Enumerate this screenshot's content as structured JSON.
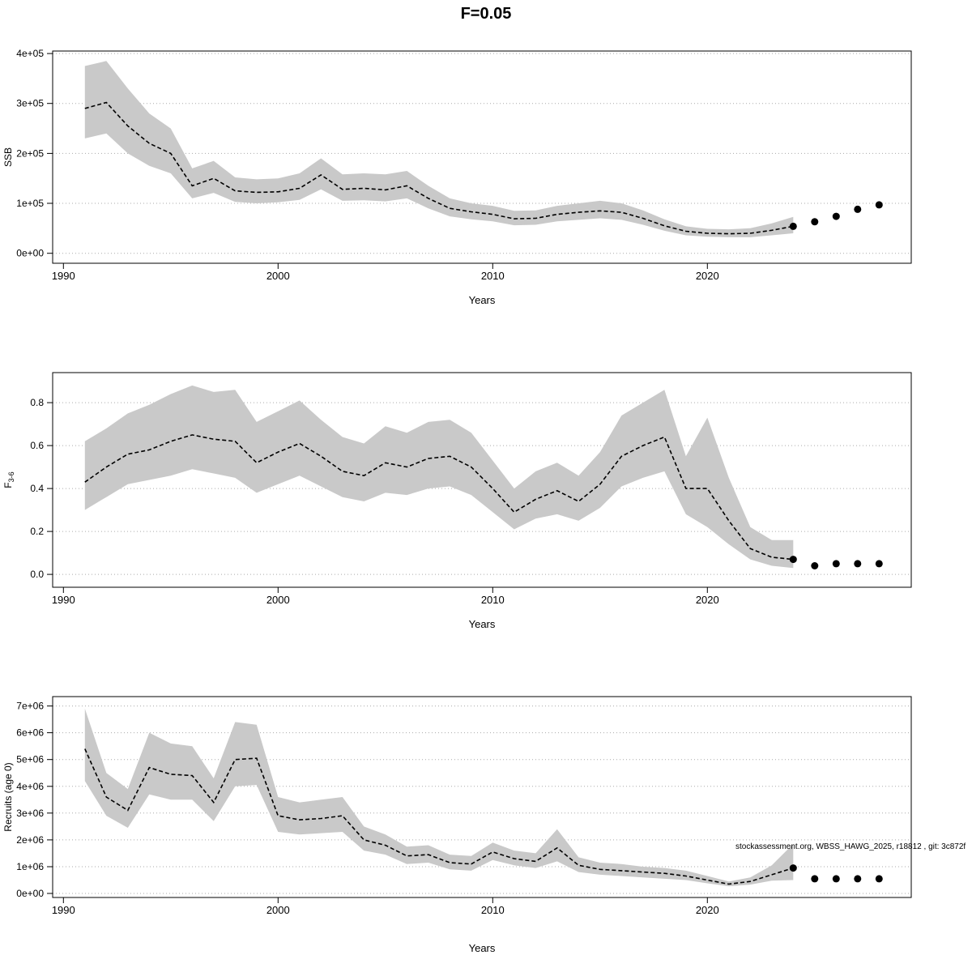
{
  "title": "F=0.05",
  "watermark": "stockassessment.org, WBSS_HAWG_2025, r18812 , git: 3c872f",
  "colors": {
    "band": "#c9c9c9",
    "line": "#000000",
    "grid": "#aaaaaa"
  },
  "chart_data": [
    {
      "id": "ssb",
      "type": "area",
      "ylabel": "SSB",
      "ylabel_sub": "",
      "xlabel": "Years",
      "xlim": [
        1989.5,
        2029.5
      ],
      "xticks": [
        1990,
        2000,
        2010,
        2020
      ],
      "ylim": [
        -20000,
        405000
      ],
      "yticks": [
        0,
        100000,
        200000,
        300000,
        400000
      ],
      "ytick_labels": [
        "0e+00",
        "1e+05",
        "2e+05",
        "3e+05",
        "4e+05"
      ],
      "years": [
        1991,
        1992,
        1993,
        1994,
        1995,
        1996,
        1997,
        1998,
        1999,
        2000,
        2001,
        2002,
        2003,
        2004,
        2005,
        2006,
        2007,
        2008,
        2009,
        2010,
        2011,
        2012,
        2013,
        2014,
        2015,
        2016,
        2017,
        2018,
        2019,
        2020,
        2021,
        2022,
        2023,
        2024
      ],
      "mean": [
        290000,
        302000,
        255000,
        220000,
        200000,
        135000,
        150000,
        125000,
        122000,
        123000,
        130000,
        157000,
        128000,
        130000,
        127000,
        135000,
        110000,
        90000,
        83000,
        78000,
        69000,
        70000,
        78000,
        82000,
        85000,
        82000,
        70000,
        55000,
        44000,
        40000,
        39000,
        40000,
        46000,
        54000
      ],
      "upper": [
        375000,
        385000,
        330000,
        280000,
        250000,
        170000,
        185000,
        152000,
        148000,
        150000,
        160000,
        190000,
        158000,
        160000,
        158000,
        165000,
        135000,
        110000,
        100000,
        95000,
        85000,
        86000,
        95000,
        100000,
        105000,
        100000,
        86000,
        68000,
        54000,
        49000,
        48000,
        50000,
        60000,
        73000
      ],
      "lower": [
        230000,
        240000,
        200000,
        175000,
        160000,
        110000,
        121000,
        103000,
        100000,
        102000,
        107000,
        128000,
        105000,
        106000,
        104000,
        110000,
        90000,
        74000,
        68000,
        64000,
        56000,
        57000,
        64000,
        67000,
        70000,
        67000,
        57000,
        45000,
        36000,
        33000,
        32000,
        32000,
        36000,
        40000
      ],
      "forecast_years": [
        2025,
        2026,
        2027,
        2028
      ],
      "forecast": [
        63000,
        74000,
        88000,
        97000
      ]
    },
    {
      "id": "f36",
      "type": "area",
      "ylabel": "F",
      "ylabel_sub": "3-6",
      "xlabel": "Years",
      "xlim": [
        1989.5,
        2029.5
      ],
      "xticks": [
        1990,
        2000,
        2010,
        2020
      ],
      "ylim": [
        -0.06,
        0.94
      ],
      "yticks": [
        0.0,
        0.2,
        0.4,
        0.6,
        0.8
      ],
      "ytick_labels": [
        "0.0",
        "0.2",
        "0.4",
        "0.6",
        "0.8"
      ],
      "years": [
        1991,
        1992,
        1993,
        1994,
        1995,
        1996,
        1997,
        1998,
        1999,
        2000,
        2001,
        2002,
        2003,
        2004,
        2005,
        2006,
        2007,
        2008,
        2009,
        2010,
        2011,
        2012,
        2013,
        2014,
        2015,
        2016,
        2017,
        2018,
        2019,
        2020,
        2021,
        2022,
        2023,
        2024
      ],
      "mean": [
        0.43,
        0.5,
        0.56,
        0.58,
        0.62,
        0.65,
        0.63,
        0.62,
        0.52,
        0.57,
        0.61,
        0.55,
        0.48,
        0.46,
        0.52,
        0.5,
        0.54,
        0.55,
        0.5,
        0.4,
        0.29,
        0.35,
        0.39,
        0.34,
        0.42,
        0.55,
        0.6,
        0.64,
        0.4,
        0.4,
        0.25,
        0.12,
        0.08,
        0.07
      ],
      "upper": [
        0.62,
        0.68,
        0.75,
        0.79,
        0.84,
        0.88,
        0.85,
        0.86,
        0.71,
        0.76,
        0.81,
        0.72,
        0.64,
        0.61,
        0.69,
        0.66,
        0.71,
        0.72,
        0.66,
        0.53,
        0.4,
        0.48,
        0.52,
        0.46,
        0.57,
        0.74,
        0.8,
        0.86,
        0.55,
        0.73,
        0.45,
        0.22,
        0.16,
        0.16
      ],
      "lower": [
        0.3,
        0.36,
        0.42,
        0.44,
        0.46,
        0.49,
        0.47,
        0.45,
        0.38,
        0.42,
        0.46,
        0.41,
        0.36,
        0.34,
        0.38,
        0.37,
        0.4,
        0.41,
        0.37,
        0.29,
        0.21,
        0.26,
        0.28,
        0.25,
        0.31,
        0.41,
        0.45,
        0.48,
        0.28,
        0.22,
        0.14,
        0.07,
        0.04,
        0.03
      ],
      "forecast_years": [
        2025,
        2026,
        2027,
        2028
      ],
      "forecast": [
        0.04,
        0.05,
        0.05,
        0.05
      ]
    },
    {
      "id": "recruits",
      "type": "area",
      "ylabel": "Recruits (age 0)",
      "ylabel_sub": "",
      "xlabel": "Years",
      "xlim": [
        1989.5,
        2029.5
      ],
      "xticks": [
        1990,
        2000,
        2010,
        2020
      ],
      "ylim": [
        -150000,
        7350000
      ],
      "yticks": [
        0,
        1000000,
        2000000,
        3000000,
        4000000,
        5000000,
        6000000,
        7000000
      ],
      "ytick_labels": [
        "0e+00",
        "1e+06",
        "2e+06",
        "3e+06",
        "4e+06",
        "5e+06",
        "6e+06",
        "7e+06"
      ],
      "years": [
        1991,
        1992,
        1993,
        1994,
        1995,
        1996,
        1997,
        1998,
        1999,
        2000,
        2001,
        2002,
        2003,
        2004,
        2005,
        2006,
        2007,
        2008,
        2009,
        2010,
        2011,
        2012,
        2013,
        2014,
        2015,
        2016,
        2017,
        2018,
        2019,
        2020,
        2021,
        2022,
        2023,
        2024
      ],
      "mean": [
        5400000,
        3600000,
        3100000,
        4700000,
        4450000,
        4400000,
        3400000,
        5000000,
        5050000,
        2900000,
        2750000,
        2800000,
        2900000,
        2000000,
        1800000,
        1400000,
        1450000,
        1150000,
        1100000,
        1550000,
        1300000,
        1200000,
        1700000,
        1050000,
        900000,
        850000,
        800000,
        750000,
        650000,
        500000,
        350000,
        450000,
        700000,
        950000
      ],
      "upper": [
        6900000,
        4500000,
        3900000,
        6000000,
        5600000,
        5500000,
        4300000,
        6400000,
        6300000,
        3600000,
        3400000,
        3500000,
        3600000,
        2500000,
        2200000,
        1750000,
        1800000,
        1450000,
        1400000,
        1900000,
        1600000,
        1500000,
        2400000,
        1350000,
        1150000,
        1100000,
        1000000,
        950000,
        850000,
        650000,
        450000,
        600000,
        1050000,
        1850000
      ],
      "lower": [
        4200000,
        2900000,
        2450000,
        3700000,
        3500000,
        3500000,
        2700000,
        4000000,
        4050000,
        2300000,
        2200000,
        2250000,
        2300000,
        1600000,
        1450000,
        1100000,
        1150000,
        900000,
        850000,
        1250000,
        1050000,
        950000,
        1200000,
        800000,
        700000,
        650000,
        600000,
        550000,
        500000,
        380000,
        270000,
        330000,
        480000,
        500000
      ],
      "forecast_years": [
        2025,
        2026,
        2027,
        2028
      ],
      "forecast": [
        550000,
        550000,
        550000,
        550000
      ]
    }
  ]
}
